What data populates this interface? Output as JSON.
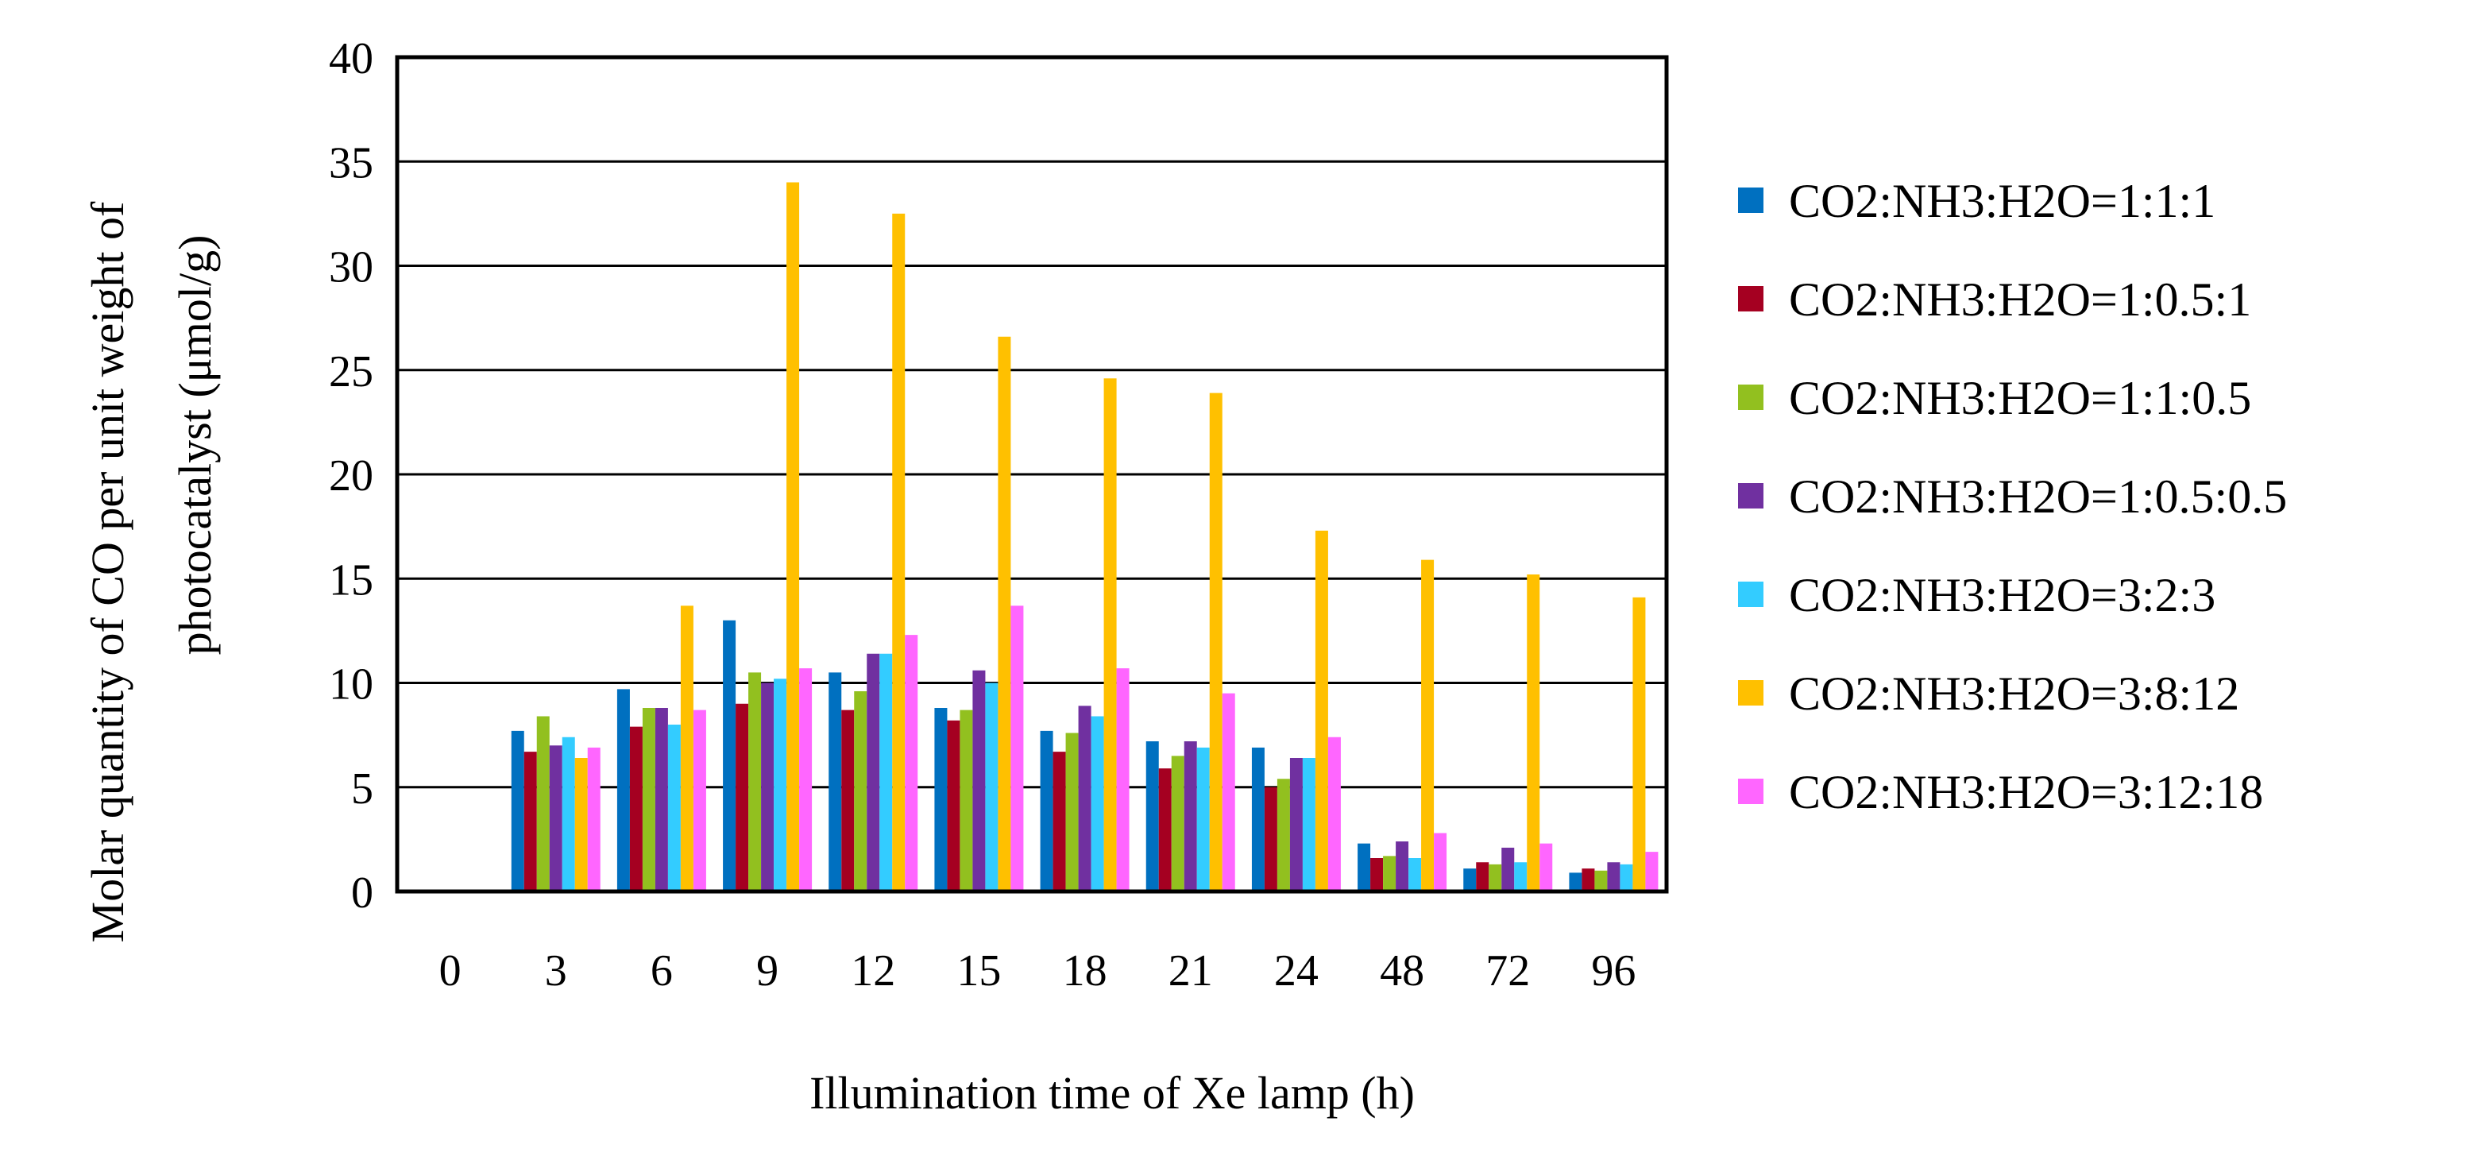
{
  "chart_data": {
    "type": "bar",
    "title": "",
    "xlabel": "Illumination  time of Xe lamp (h)",
    "ylabel_lines": [
      "Molar quantity of CO per unit  weight  of",
      "photocatalyst (μmol/g)"
    ],
    "categories": [
      "0",
      "3",
      "6",
      "9",
      "12",
      "15",
      "18",
      "21",
      "24",
      "48",
      "72",
      "96"
    ],
    "ylim": [
      0,
      40
    ],
    "yticks": [
      "0",
      "5",
      "10",
      "15",
      "20",
      "25",
      "30",
      "35",
      "40"
    ],
    "grid": "horizontal",
    "legend_position": "right",
    "series": [
      {
        "name": "CO2:NH3:H2O=1:1:1",
        "color": "#0070C0",
        "values": [
          0,
          7.7,
          9.7,
          13.0,
          10.5,
          8.8,
          7.7,
          7.2,
          6.9,
          2.3,
          1.1,
          0.9
        ]
      },
      {
        "name": "CO2:NH3:H2O=1:0.5:1",
        "color": "#A50021",
        "values": [
          0,
          6.7,
          7.9,
          9.0,
          8.7,
          8.2,
          6.7,
          5.9,
          5.0,
          1.6,
          1.4,
          1.1
        ]
      },
      {
        "name": "CO2:NH3:H2O=1:1:0.5",
        "color": "#92C01F",
        "values": [
          0,
          8.4,
          8.8,
          10.5,
          9.6,
          8.7,
          7.6,
          6.5,
          5.4,
          1.7,
          1.3,
          1.0
        ]
      },
      {
        "name": "CO2:NH3:H2O=1:0.5:0.5",
        "color": "#7030A0",
        "values": [
          0,
          7.0,
          8.8,
          10.0,
          11.4,
          10.6,
          8.9,
          7.2,
          6.4,
          2.4,
          2.1,
          1.4
        ]
      },
      {
        "name": "CO2:NH3:H2O=3:2:3",
        "color": "#33CCFF",
        "values": [
          0,
          7.4,
          8.0,
          10.2,
          11.4,
          10.0,
          8.4,
          6.9,
          6.4,
          1.6,
          1.4,
          1.3
        ]
      },
      {
        "name": "CO2:NH3:H2O=3:8:12",
        "color": "#FFC000",
        "values": [
          0,
          6.4,
          13.7,
          34.0,
          32.5,
          26.6,
          24.6,
          23.9,
          17.3,
          15.9,
          15.2,
          14.1
        ]
      },
      {
        "name": "CO2:NH3:H2O=3:12:18",
        "color": "#FF66FF",
        "values": [
          0,
          6.9,
          8.7,
          10.7,
          12.3,
          13.7,
          10.7,
          9.5,
          7.4,
          2.8,
          2.3,
          1.9
        ]
      }
    ]
  }
}
